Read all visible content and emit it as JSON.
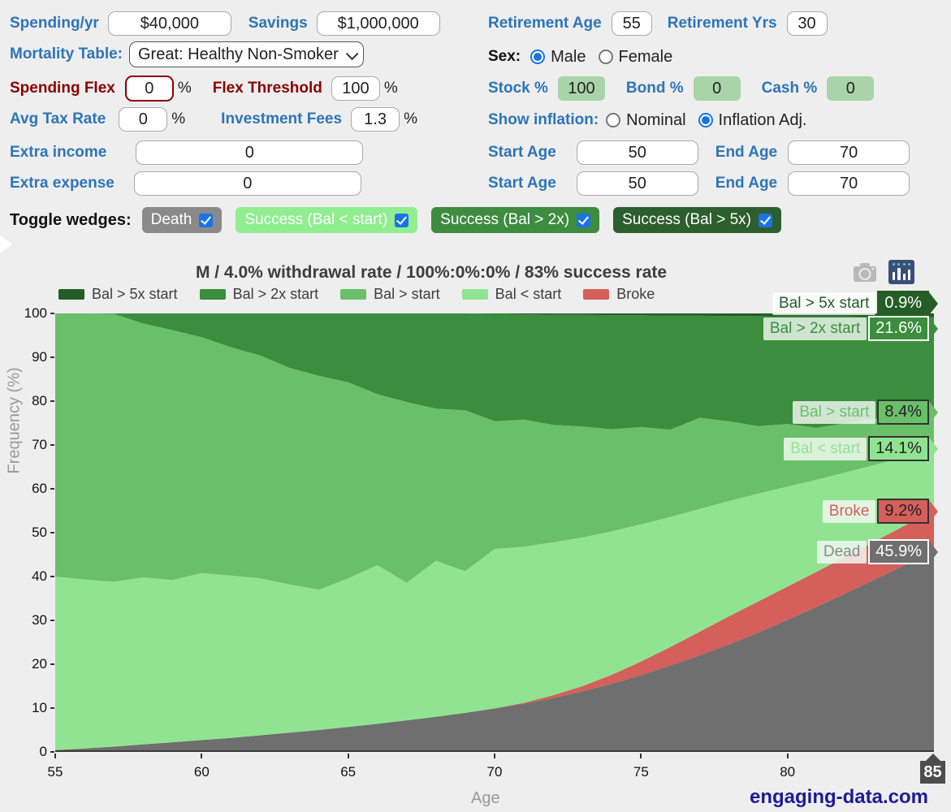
{
  "form": {
    "left": {
      "spending_label": "Spending/yr",
      "spending_value": "$40,000",
      "savings_label": "Savings",
      "savings_value": "$1,000,000",
      "mortality_label": "Mortality Table:",
      "mortality_value": "Great: Healthy Non-Smoker",
      "spending_flex_label": "Spending Flex",
      "spending_flex_value": "0",
      "spending_flex_unit": "%",
      "flex_threshold_label": "Flex Threshold",
      "flex_threshold_value": "100",
      "flex_threshold_unit": "%",
      "avg_tax_label": "Avg Tax Rate",
      "avg_tax_value": "0",
      "avg_tax_unit": "%",
      "fees_label": "Investment Fees",
      "fees_value": "1.3",
      "fees_unit": "%",
      "extra_income_label": "Extra income",
      "extra_income_value": "0",
      "extra_expense_label": "Extra expense",
      "extra_expense_value": "0"
    },
    "right": {
      "retirement_age_label": "Retirement Age",
      "retirement_age_value": "55",
      "retirement_yrs_label": "Retirement Yrs",
      "retirement_yrs_value": "30",
      "sex": {
        "label": "Sex:",
        "options": [
          {
            "label": "Male",
            "selected": true
          },
          {
            "label": "Female",
            "selected": false
          }
        ]
      },
      "stock_label": "Stock %",
      "stock_value": "100",
      "bond_label": "Bond %",
      "bond_value": "0",
      "cash_label": "Cash %",
      "cash_value": "0",
      "inflation": {
        "label": "Show inflation:",
        "options": [
          {
            "label": "Nominal",
            "selected": false
          },
          {
            "label": "Inflation Adj.",
            "selected": true
          }
        ]
      },
      "income_start_label": "Start Age",
      "income_start_value": "50",
      "income_end_label": "End Age",
      "income_end_value": "70",
      "expense_start_label": "Start Age",
      "expense_start_value": "50",
      "expense_end_label": "End Age",
      "expense_end_value": "70"
    },
    "toggle": {
      "label": "Toggle wedges:",
      "buttons": [
        {
          "label": "Death",
          "color": "#8a8a8a",
          "checked": true
        },
        {
          "label": "Success (Bal < start)",
          "color": "#90ee90",
          "checked": true
        },
        {
          "label": "Success (Bal > 2x)",
          "color": "#3d8c40",
          "checked": true
        },
        {
          "label": "Success (Bal > 5x)",
          "color": "#2c5e2e",
          "checked": true
        }
      ]
    }
  },
  "modebar": {
    "camera_icon": "camera-icon",
    "data_icon": "data-grid-icon"
  },
  "chart_data": {
    "type": "area",
    "title": "M / 4.0% withdrawal rate / 100%:0%:0% / 83% success rate",
    "xlabel": "Age",
    "ylabel": "Frequency (%)",
    "xlim": [
      55,
      85
    ],
    "ylim": [
      0,
      100
    ],
    "x_ticks": [
      55,
      60,
      65,
      70,
      75,
      80
    ],
    "end_age_badge": "85",
    "y_ticks": [
      0,
      10,
      20,
      30,
      40,
      50,
      60,
      70,
      80,
      90,
      100
    ],
    "grid": false,
    "legend_position": "top",
    "legend": [
      {
        "label": "Bal > 5x start",
        "color": "#255d26"
      },
      {
        "label": "Bal > 2x start",
        "color": "#3a8e3d"
      },
      {
        "label": "Bal > start",
        "color": "#6abf69"
      },
      {
        "label": "Bal < start",
        "color": "#90e491"
      },
      {
        "label": "Broke",
        "color": "#d45f5b"
      }
    ],
    "ages": [
      55,
      56,
      57,
      58,
      59,
      60,
      61,
      62,
      63,
      64,
      65,
      66,
      67,
      68,
      69,
      70,
      71,
      72,
      73,
      74,
      75,
      76,
      77,
      78,
      79,
      80,
      81,
      82,
      83,
      84,
      85
    ],
    "series": [
      {
        "name": "Dead",
        "color": "#6f6f6f",
        "cumulative_top": [
          0.4,
          0.8,
          1.2,
          1.7,
          2.2,
          2.7,
          3.2,
          3.8,
          4.4,
          5.0,
          5.7,
          6.4,
          7.2,
          8.0,
          8.9,
          9.9,
          11.0,
          12.3,
          13.8,
          15.5,
          17.5,
          19.7,
          22.0,
          24.5,
          27.2,
          30.1,
          33.1,
          36.2,
          39.4,
          42.6,
          45.9
        ]
      },
      {
        "name": "Broke",
        "color": "#d45f5b",
        "cumulative_top": [
          0.4,
          0.8,
          1.2,
          1.7,
          2.2,
          2.7,
          3.2,
          3.8,
          4.4,
          5.0,
          5.7,
          6.4,
          7.2,
          8.0,
          8.9,
          9.9,
          11.2,
          12.9,
          15.0,
          17.6,
          20.6,
          23.9,
          27.4,
          30.9,
          34.3,
          37.7,
          41.1,
          44.6,
          48.1,
          51.6,
          55.1
        ]
      },
      {
        "name": "Bal < start",
        "color": "#90e491",
        "cumulative_top": [
          40.0,
          39.3,
          38.8,
          39.8,
          39.2,
          40.8,
          40.2,
          39.6,
          38.2,
          37.0,
          39.6,
          42.6,
          38.6,
          43.6,
          41.2,
          46.3,
          46.8,
          47.8,
          48.9,
          50.3,
          51.9,
          53.6,
          55.4,
          57.2,
          58.9,
          60.5,
          62.1,
          63.8,
          65.5,
          67.3,
          69.2
        ]
      },
      {
        "name": "Bal > start",
        "color": "#6abf69",
        "cumulative_top": [
          100,
          100,
          99.9,
          97.7,
          96.2,
          94.6,
          92.3,
          90.4,
          87.6,
          85.8,
          84.3,
          81.6,
          79.8,
          78.3,
          77.9,
          75.4,
          75.8,
          74.6,
          74.2,
          73.6,
          74.1,
          73.5,
          76.2,
          75.4,
          74.3,
          74.8,
          73.9,
          75.0,
          76.0,
          76.8,
          77.6
        ]
      },
      {
        "name": "Bal > 2x start",
        "color": "#3a8e3d",
        "cumulative_top": [
          100,
          100,
          100,
          100,
          100,
          100,
          100,
          100,
          100,
          100,
          100,
          100,
          100,
          100,
          100,
          99.9,
          99.8,
          99.7,
          99.7,
          99.6,
          99.6,
          99.5,
          99.5,
          99.4,
          99.4,
          99.3,
          99.3,
          99.3,
          99.2,
          99.2,
          99.1
        ]
      },
      {
        "name": "Bal > 5x start",
        "color": "#255d26",
        "cumulative_top": [
          100,
          100,
          100,
          100,
          100,
          100,
          100,
          100,
          100,
          100,
          100,
          100,
          100,
          100,
          100,
          100,
          100,
          100,
          100,
          100,
          100,
          100,
          100,
          100,
          100,
          100,
          100,
          100,
          100,
          100,
          100
        ]
      }
    ],
    "annotations": [
      {
        "label": "Bal > 5x start",
        "value": "0.9%",
        "label_color": "#255d26",
        "label_bg": "rgba(255,255,255,0.78)",
        "badge_bg": "#255d26",
        "badge_color": "#ffffff",
        "badge_border": "#255d26"
      },
      {
        "label": "Bal > 2x start",
        "value": "21.6%",
        "label_color": "#3a8e3d",
        "label_bg": "rgba(233,243,233,0.85)",
        "badge_bg": "#3a8e3d",
        "badge_color": "#ffffff",
        "badge_border": "#ffffff"
      },
      {
        "label": "Bal > start",
        "value": "8.4%",
        "label_color": "#6abf69",
        "label_bg": "rgba(236,246,236,0.85)",
        "badge_bg": "#6abf69",
        "badge_color": "#222222",
        "badge_border": "#333333"
      },
      {
        "label": "Bal < start",
        "value": "14.1%",
        "label_color": "#90e491",
        "label_bg": "rgba(240,248,240,0.85)",
        "badge_bg": "#90e491",
        "badge_color": "#222222",
        "badge_border": "#333333"
      },
      {
        "label": "Broke",
        "value": "9.2%",
        "label_color": "#d45f5b",
        "label_bg": "rgba(240,248,240,0.85)",
        "badge_bg": "#d45f5b",
        "badge_color": "#222222",
        "badge_border": "#333333"
      },
      {
        "label": "Dead",
        "value": "45.9%",
        "label_color": "#8a8a8a",
        "label_bg": "rgba(240,248,240,0.85)",
        "badge_bg": "#6f6f6f",
        "badge_color": "#ffffff",
        "badge_border": "#ffffff"
      }
    ],
    "watermark": "engaging-data.com"
  }
}
